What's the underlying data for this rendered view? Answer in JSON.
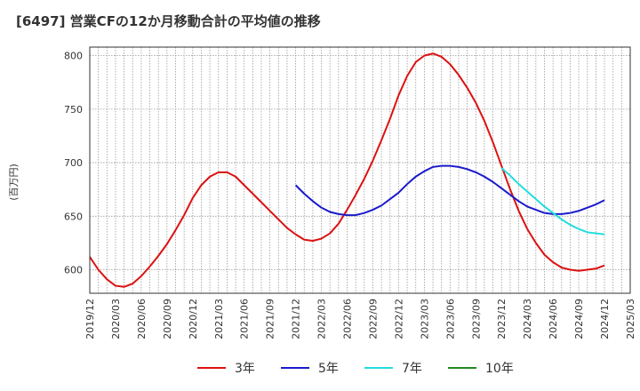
{
  "chart_data": {
    "type": "line",
    "title": "[6497]  営業CFの12か月移動合計の平均値の推移",
    "ylabel": "(百万円)",
    "xlabel": "",
    "ylim": [
      578,
      808
    ],
    "yticks": [
      600,
      650,
      700,
      750,
      800
    ],
    "xlim": [
      "2019-12",
      "2025-03"
    ],
    "xticks": [
      "2019/12",
      "2020/03",
      "2020/06",
      "2020/09",
      "2020/12",
      "2021/03",
      "2021/06",
      "2021/09",
      "2021/12",
      "2022/03",
      "2022/06",
      "2022/09",
      "2022/12",
      "2023/03",
      "2023/06",
      "2023/09",
      "2023/12",
      "2024/03",
      "2024/06",
      "2024/09",
      "2024/12",
      "2025/03"
    ],
    "grid": true,
    "legend_position": "bottom",
    "series": [
      {
        "name": "3年",
        "color": "#dd1111",
        "points": [
          [
            "2019-12",
            612
          ],
          [
            "2020-01",
            600
          ],
          [
            "2020-02",
            591
          ],
          [
            "2020-03",
            585
          ],
          [
            "2020-04",
            584
          ],
          [
            "2020-05",
            587
          ],
          [
            "2020-06",
            594
          ],
          [
            "2020-07",
            603
          ],
          [
            "2020-08",
            613
          ],
          [
            "2020-09",
            624
          ],
          [
            "2020-10",
            637
          ],
          [
            "2020-11",
            651
          ],
          [
            "2020-12",
            667
          ],
          [
            "2021-01",
            679
          ],
          [
            "2021-02",
            687
          ],
          [
            "2021-03",
            691
          ],
          [
            "2021-04",
            691
          ],
          [
            "2021-05",
            687
          ],
          [
            "2021-06",
            679
          ],
          [
            "2021-07",
            671
          ],
          [
            "2021-08",
            663
          ],
          [
            "2021-09",
            655
          ],
          [
            "2021-10",
            647
          ],
          [
            "2021-11",
            639
          ],
          [
            "2021-12",
            633
          ],
          [
            "2022-01",
            628
          ],
          [
            "2022-02",
            627
          ],
          [
            "2022-03",
            629
          ],
          [
            "2022-04",
            634
          ],
          [
            "2022-05",
            643
          ],
          [
            "2022-06",
            656
          ],
          [
            "2022-07",
            670
          ],
          [
            "2022-08",
            685
          ],
          [
            "2022-09",
            702
          ],
          [
            "2022-10",
            721
          ],
          [
            "2022-11",
            741
          ],
          [
            "2022-12",
            763
          ],
          [
            "2023-01",
            781
          ],
          [
            "2023-02",
            794
          ],
          [
            "2023-03",
            800
          ],
          [
            "2023-04",
            802
          ],
          [
            "2023-05",
            799
          ],
          [
            "2023-06",
            792
          ],
          [
            "2023-07",
            782
          ],
          [
            "2023-08",
            770
          ],
          [
            "2023-09",
            756
          ],
          [
            "2023-10",
            739
          ],
          [
            "2023-11",
            719
          ],
          [
            "2023-12",
            697
          ],
          [
            "2024-01",
            675
          ],
          [
            "2024-02",
            655
          ],
          [
            "2024-03",
            638
          ],
          [
            "2024-04",
            625
          ],
          [
            "2024-05",
            614
          ],
          [
            "2024-06",
            607
          ],
          [
            "2024-07",
            602
          ],
          [
            "2024-08",
            600
          ],
          [
            "2024-09",
            599
          ],
          [
            "2024-10",
            600
          ],
          [
            "2024-11",
            601
          ],
          [
            "2024-12",
            604
          ]
        ]
      },
      {
        "name": "5年",
        "color": "#1a1acc",
        "points": [
          [
            "2021-12",
            679
          ],
          [
            "2022-01",
            671
          ],
          [
            "2022-02",
            664
          ],
          [
            "2022-03",
            658
          ],
          [
            "2022-04",
            654
          ],
          [
            "2022-05",
            652
          ],
          [
            "2022-06",
            651
          ],
          [
            "2022-07",
            651
          ],
          [
            "2022-08",
            653
          ],
          [
            "2022-09",
            656
          ],
          [
            "2022-10",
            660
          ],
          [
            "2022-11",
            666
          ],
          [
            "2022-12",
            672
          ],
          [
            "2023-01",
            680
          ],
          [
            "2023-02",
            687
          ],
          [
            "2023-03",
            692
          ],
          [
            "2023-04",
            696
          ],
          [
            "2023-05",
            697
          ],
          [
            "2023-06",
            697
          ],
          [
            "2023-07",
            696
          ],
          [
            "2023-08",
            694
          ],
          [
            "2023-09",
            691
          ],
          [
            "2023-10",
            687
          ],
          [
            "2023-11",
            682
          ],
          [
            "2023-12",
            676
          ],
          [
            "2024-01",
            670
          ],
          [
            "2024-02",
            664
          ],
          [
            "2024-03",
            659
          ],
          [
            "2024-04",
            656
          ],
          [
            "2024-05",
            653
          ],
          [
            "2024-06",
            652
          ],
          [
            "2024-07",
            652
          ],
          [
            "2024-08",
            653
          ],
          [
            "2024-09",
            655
          ],
          [
            "2024-10",
            658
          ],
          [
            "2024-11",
            661
          ],
          [
            "2024-12",
            665
          ]
        ]
      },
      {
        "name": "7年",
        "color": "#22dddd",
        "points": [
          [
            "2023-12",
            695
          ],
          [
            "2024-01",
            688
          ],
          [
            "2024-02",
            680
          ],
          [
            "2024-03",
            673
          ],
          [
            "2024-04",
            666
          ],
          [
            "2024-05",
            659
          ],
          [
            "2024-06",
            653
          ],
          [
            "2024-07",
            647
          ],
          [
            "2024-08",
            642
          ],
          [
            "2024-09",
            638
          ],
          [
            "2024-10",
            635
          ],
          [
            "2024-11",
            634
          ],
          [
            "2024-12",
            633
          ]
        ]
      },
      {
        "name": "10年",
        "color": "#228822",
        "points": []
      }
    ]
  }
}
